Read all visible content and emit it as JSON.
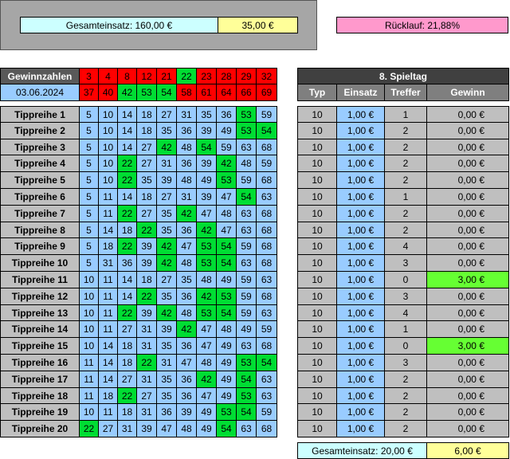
{
  "summary": {
    "gesamteinsatz_label": "Gesamteinsatz: 160,00 €",
    "gesamteinsatz_gewinn": "35,00 €",
    "ruecklauf": "Rücklauf: 21,88%"
  },
  "draw": {
    "header_label": "Gewinnzahlen",
    "date": "03.06.2024",
    "numbers_row1": [
      "3",
      "4",
      "8",
      "12",
      "21",
      "22",
      "23",
      "28",
      "29",
      "32"
    ],
    "numbers_row2": [
      "37",
      "40",
      "42",
      "53",
      "54",
      "58",
      "61",
      "64",
      "66",
      "69"
    ],
    "green_row1": [
      false,
      false,
      false,
      false,
      false,
      true,
      false,
      false,
      false,
      false
    ],
    "green_row2": [
      false,
      false,
      true,
      true,
      true,
      false,
      false,
      false,
      false,
      false
    ]
  },
  "spieltag": {
    "title": "8. Spieltag",
    "columns": [
      "Typ",
      "Einsatz",
      "Treffer",
      "Gewinn"
    ]
  },
  "tippreihen": [
    {
      "label": "Tippreihe 1",
      "numbers": [
        "5",
        "10",
        "14",
        "18",
        "27",
        "31",
        "35",
        "36",
        "53",
        "59"
      ],
      "hits": [
        8
      ],
      "typ": "10",
      "einsatz": "1,00 €",
      "treffer": "1",
      "gewinn": "0,00 €",
      "win": false
    },
    {
      "label": "Tippreihe 2",
      "numbers": [
        "5",
        "10",
        "14",
        "18",
        "35",
        "36",
        "39",
        "49",
        "53",
        "54"
      ],
      "hits": [
        8,
        9
      ],
      "typ": "10",
      "einsatz": "1,00 €",
      "treffer": "2",
      "gewinn": "0,00 €",
      "win": false
    },
    {
      "label": "Tippreihe 3",
      "numbers": [
        "5",
        "10",
        "14",
        "27",
        "42",
        "48",
        "54",
        "59",
        "63",
        "68"
      ],
      "hits": [
        4,
        6
      ],
      "typ": "10",
      "einsatz": "1,00 €",
      "treffer": "2",
      "gewinn": "0,00 €",
      "win": false
    },
    {
      "label": "Tippreihe 4",
      "numbers": [
        "5",
        "10",
        "22",
        "27",
        "31",
        "36",
        "39",
        "42",
        "48",
        "59"
      ],
      "hits": [
        2,
        7
      ],
      "typ": "10",
      "einsatz": "1,00 €",
      "treffer": "2",
      "gewinn": "0,00 €",
      "win": false
    },
    {
      "label": "Tippreihe 5",
      "numbers": [
        "5",
        "10",
        "22",
        "35",
        "39",
        "48",
        "49",
        "53",
        "59",
        "68"
      ],
      "hits": [
        2,
        7
      ],
      "typ": "10",
      "einsatz": "1,00 €",
      "treffer": "2",
      "gewinn": "0,00 €",
      "win": false
    },
    {
      "label": "Tippreihe 6",
      "numbers": [
        "5",
        "11",
        "14",
        "18",
        "27",
        "31",
        "39",
        "47",
        "54",
        "63"
      ],
      "hits": [
        8
      ],
      "typ": "10",
      "einsatz": "1,00 €",
      "treffer": "1",
      "gewinn": "0,00 €",
      "win": false
    },
    {
      "label": "Tippreihe 7",
      "numbers": [
        "5",
        "11",
        "22",
        "27",
        "35",
        "42",
        "47",
        "48",
        "63",
        "68"
      ],
      "hits": [
        2,
        5
      ],
      "typ": "10",
      "einsatz": "1,00 €",
      "treffer": "2",
      "gewinn": "0,00 €",
      "win": false
    },
    {
      "label": "Tippreihe 8",
      "numbers": [
        "5",
        "14",
        "18",
        "22",
        "35",
        "36",
        "42",
        "47",
        "63",
        "68"
      ],
      "hits": [
        3,
        6
      ],
      "typ": "10",
      "einsatz": "1,00 €",
      "treffer": "2",
      "gewinn": "0,00 €",
      "win": false
    },
    {
      "label": "Tippreihe 9",
      "numbers": [
        "5",
        "18",
        "22",
        "39",
        "42",
        "47",
        "53",
        "54",
        "59",
        "68"
      ],
      "hits": [
        2,
        4,
        6,
        7
      ],
      "typ": "10",
      "einsatz": "1,00 €",
      "treffer": "4",
      "gewinn": "0,00 €",
      "win": false
    },
    {
      "label": "Tippreihe 10",
      "numbers": [
        "5",
        "31",
        "36",
        "39",
        "42",
        "48",
        "53",
        "54",
        "63",
        "68"
      ],
      "hits": [
        4,
        6,
        7
      ],
      "typ": "10",
      "einsatz": "1,00 €",
      "treffer": "3",
      "gewinn": "0,00 €",
      "win": false
    },
    {
      "label": "Tippreihe 11",
      "numbers": [
        "10",
        "11",
        "14",
        "18",
        "27",
        "35",
        "48",
        "49",
        "59",
        "63"
      ],
      "hits": [],
      "typ": "10",
      "einsatz": "1,00 €",
      "treffer": "0",
      "gewinn": "3,00 €",
      "win": true
    },
    {
      "label": "Tippreihe 12",
      "numbers": [
        "10",
        "11",
        "14",
        "22",
        "35",
        "36",
        "42",
        "53",
        "59",
        "68"
      ],
      "hits": [
        3,
        6,
        7
      ],
      "typ": "10",
      "einsatz": "1,00 €",
      "treffer": "3",
      "gewinn": "0,00 €",
      "win": false
    },
    {
      "label": "Tippreihe 13",
      "numbers": [
        "10",
        "11",
        "22",
        "39",
        "42",
        "48",
        "53",
        "54",
        "59",
        "63"
      ],
      "hits": [
        2,
        4,
        6,
        7
      ],
      "typ": "10",
      "einsatz": "1,00 €",
      "treffer": "4",
      "gewinn": "0,00 €",
      "win": false
    },
    {
      "label": "Tippreihe 14",
      "numbers": [
        "10",
        "11",
        "27",
        "31",
        "39",
        "42",
        "47",
        "48",
        "49",
        "59"
      ],
      "hits": [
        5
      ],
      "typ": "10",
      "einsatz": "1,00 €",
      "treffer": "1",
      "gewinn": "0,00 €",
      "win": false
    },
    {
      "label": "Tippreihe 15",
      "numbers": [
        "10",
        "14",
        "18",
        "31",
        "35",
        "36",
        "47",
        "49",
        "63",
        "68"
      ],
      "hits": [],
      "typ": "10",
      "einsatz": "1,00 €",
      "treffer": "0",
      "gewinn": "3,00 €",
      "win": true
    },
    {
      "label": "Tippreihe 16",
      "numbers": [
        "11",
        "14",
        "18",
        "22",
        "31",
        "47",
        "48",
        "49",
        "53",
        "54"
      ],
      "hits": [
        3,
        8,
        9
      ],
      "typ": "10",
      "einsatz": "1,00 €",
      "treffer": "3",
      "gewinn": "0,00 €",
      "win": false
    },
    {
      "label": "Tippreihe 17",
      "numbers": [
        "11",
        "14",
        "27",
        "31",
        "35",
        "36",
        "42",
        "49",
        "54",
        "63"
      ],
      "hits": [
        6,
        8
      ],
      "typ": "10",
      "einsatz": "1,00 €",
      "treffer": "2",
      "gewinn": "0,00 €",
      "win": false
    },
    {
      "label": "Tippreihe 18",
      "numbers": [
        "11",
        "18",
        "22",
        "27",
        "35",
        "36",
        "47",
        "49",
        "53",
        "63"
      ],
      "hits": [
        2,
        8
      ],
      "typ": "10",
      "einsatz": "1,00 €",
      "treffer": "2",
      "gewinn": "0,00 €",
      "win": false
    },
    {
      "label": "Tippreihe 19",
      "numbers": [
        "10",
        "11",
        "18",
        "31",
        "36",
        "39",
        "49",
        "53",
        "54",
        "59"
      ],
      "hits": [
        7,
        8
      ],
      "typ": "10",
      "einsatz": "1,00 €",
      "treffer": "2",
      "gewinn": "0,00 €",
      "win": false
    },
    {
      "label": "Tippreihe 20",
      "numbers": [
        "22",
        "27",
        "31",
        "39",
        "47",
        "48",
        "49",
        "54",
        "63",
        "68"
      ],
      "hits": [
        0,
        7
      ],
      "typ": "10",
      "einsatz": "1,00 €",
      "treffer": "2",
      "gewinn": "0,00 €",
      "win": false
    }
  ],
  "footer": {
    "gesamteinsatz_label": "Gesamteinsatz: 20,00 €",
    "gewinn_total": "6,00 €"
  }
}
